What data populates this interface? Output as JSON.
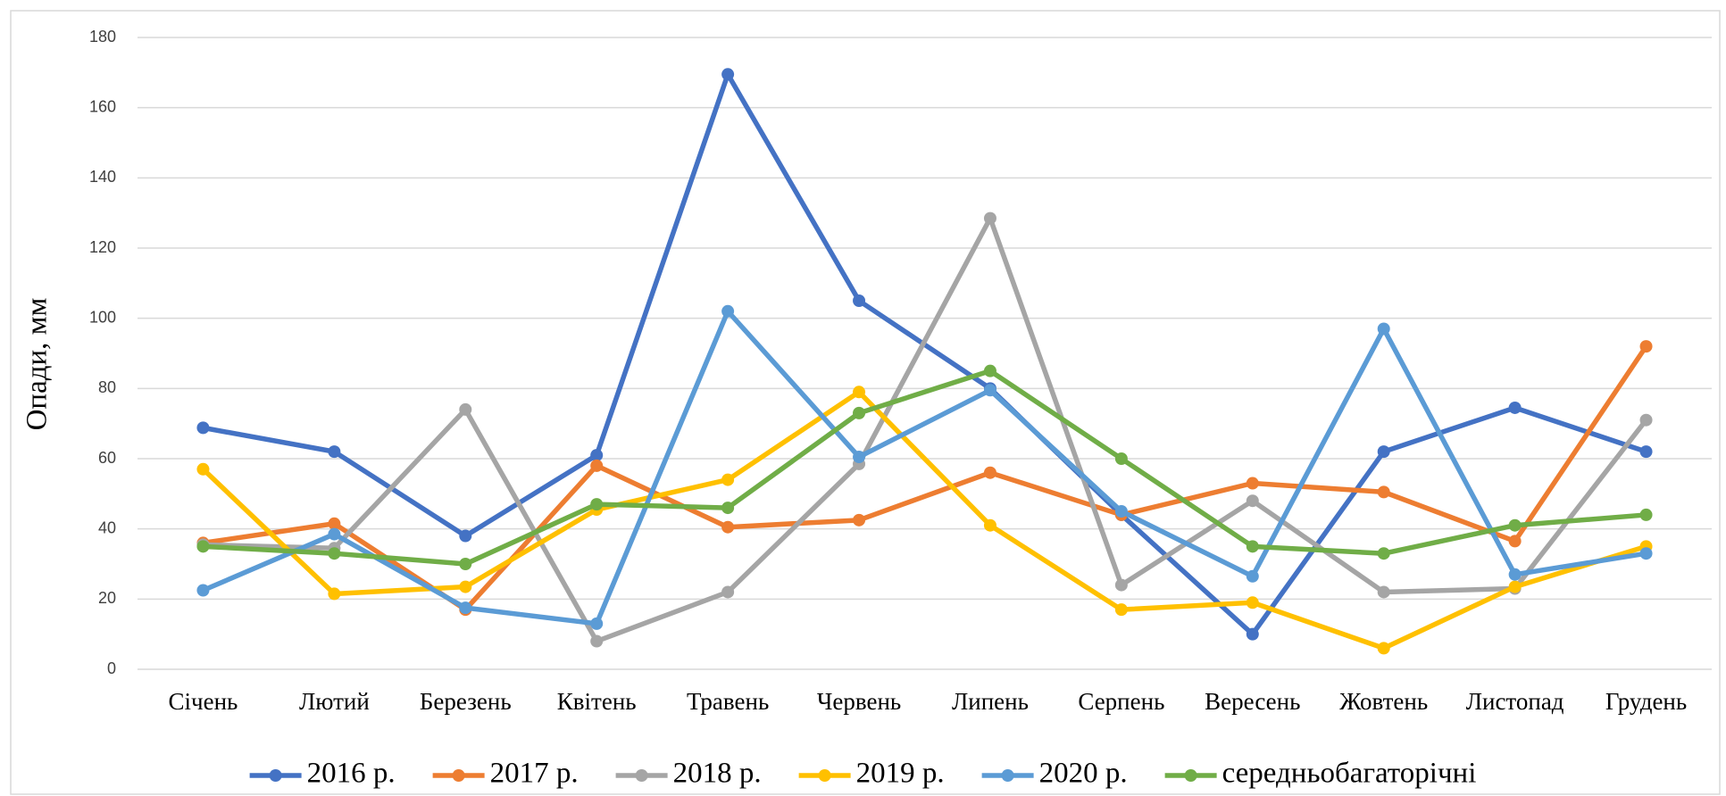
{
  "chart_data": {
    "type": "line",
    "ylabel": "Опади, мм",
    "categories": [
      "Січень",
      "Лютий",
      "Березень",
      "Квітень",
      "Травень",
      "Червень",
      "Липень",
      "Серпень",
      "Вересень",
      "Жовтень",
      "Листопад",
      "Грудень"
    ],
    "series": [
      {
        "name": "2016 р.",
        "color": "#4472c4",
        "values": [
          68.8,
          62,
          38,
          61,
          169.5,
          105,
          80,
          44,
          10,
          62,
          74.5,
          62
        ]
      },
      {
        "name": "2017 р.",
        "color": "#ed7d31",
        "values": [
          36,
          41.5,
          17,
          58,
          40.5,
          42.5,
          56,
          44,
          53,
          50.5,
          36.5,
          92
        ]
      },
      {
        "name": "2018 р.",
        "color": "#a5a5a5",
        "values": [
          35.5,
          34.5,
          74,
          8,
          22,
          58.5,
          128.5,
          24,
          48,
          22,
          23,
          71
        ]
      },
      {
        "name": "2019 р.",
        "color": "#ffc000",
        "values": [
          57,
          21.5,
          23.5,
          45.5,
          54,
          79,
          41,
          17,
          19,
          6,
          23.5,
          35
        ]
      },
      {
        "name": "2020 р.",
        "color": "#5b9bd5",
        "values": [
          22.5,
          38.5,
          17.5,
          13,
          102,
          60.5,
          79.5,
          45,
          26.5,
          97,
          27,
          33
        ]
      },
      {
        "name": "середньобагаторічні",
        "color": "#70ad47",
        "values": [
          35,
          33,
          30,
          47,
          46,
          73,
          85,
          60,
          35,
          33,
          41,
          44
        ]
      }
    ],
    "ylim": [
      0,
      180
    ],
    "yticks": [
      0,
      20,
      40,
      60,
      80,
      100,
      120,
      140,
      160,
      180
    ],
    "grid": true,
    "legend": "bottom"
  }
}
